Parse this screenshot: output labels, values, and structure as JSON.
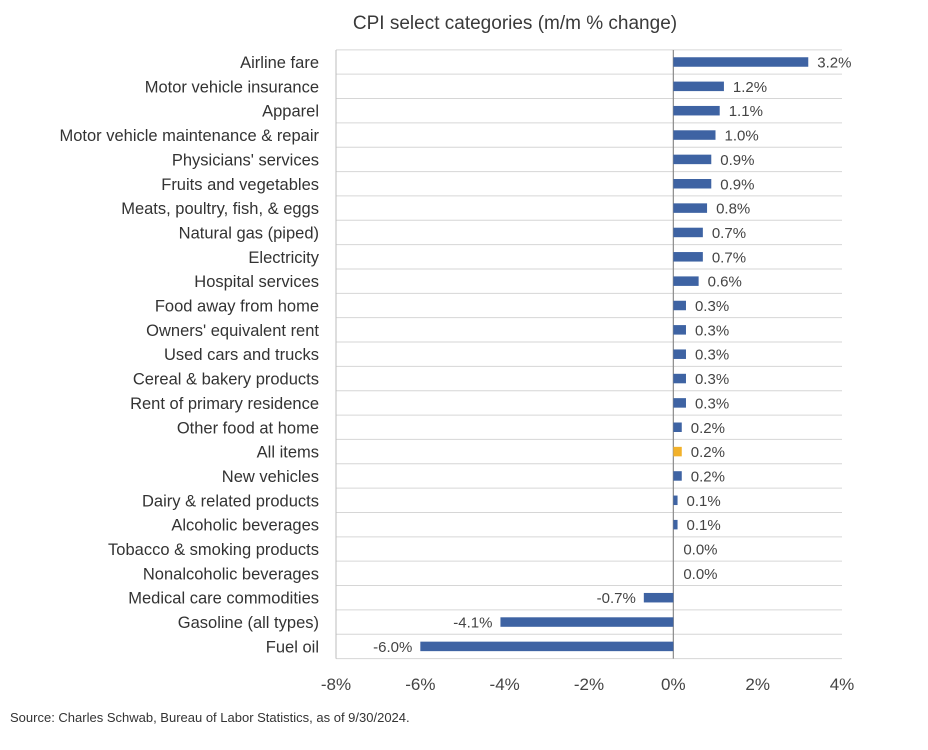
{
  "chart_data": {
    "type": "bar",
    "orientation": "horizontal",
    "title": "CPI select categories (m/m % change)",
    "xlabel": "",
    "ylabel": "",
    "xlim": [
      -8,
      4
    ],
    "xticks": [
      -8,
      -6,
      -4,
      -2,
      0,
      2,
      4
    ],
    "xtick_labels": [
      "-8%",
      "-6%",
      "-4%",
      "-2%",
      "0%",
      "2%",
      "4%"
    ],
    "grid": true,
    "categories": [
      "Airline fare",
      "Motor vehicle insurance",
      "Apparel",
      "Motor vehicle maintenance & repair",
      "Physicians' services",
      "Fruits and vegetables",
      "Meats, poultry, fish, & eggs",
      "Natural gas (piped)",
      "Electricity",
      "Hospital services",
      "Food away from home",
      "Owners' equivalent rent",
      "Used cars and trucks",
      "Cereal & bakery products",
      "Rent of primary residence",
      "Other food at home",
      "All items",
      "New vehicles",
      "Dairy & related products",
      "Alcoholic beverages",
      "Tobacco & smoking products",
      "Nonalcoholic beverages",
      "Medical care commodities",
      "Gasoline (all types)",
      "Fuel oil"
    ],
    "values": [
      3.2,
      1.2,
      1.1,
      1.0,
      0.9,
      0.9,
      0.8,
      0.7,
      0.7,
      0.6,
      0.3,
      0.3,
      0.3,
      0.3,
      0.3,
      0.2,
      0.2,
      0.2,
      0.1,
      0.1,
      0.0,
      0.0,
      -0.7,
      -4.1,
      -6.0
    ],
    "value_labels": [
      "3.2%",
      "1.2%",
      "1.1%",
      "1.0%",
      "0.9%",
      "0.9%",
      "0.8%",
      "0.7%",
      "0.7%",
      "0.6%",
      "0.3%",
      "0.3%",
      "0.3%",
      "0.3%",
      "0.3%",
      "0.2%",
      "0.2%",
      "0.2%",
      "0.1%",
      "0.1%",
      "0.0%",
      "0.0%",
      "-0.7%",
      "-4.1%",
      "-6.0%"
    ],
    "highlight_category": "All items",
    "colors": {
      "bar": "#3e63a3",
      "highlight": "#f2b12a"
    }
  },
  "source": "Source: Charles Schwab, Bureau of Labor Statistics, as of 9/30/2024."
}
